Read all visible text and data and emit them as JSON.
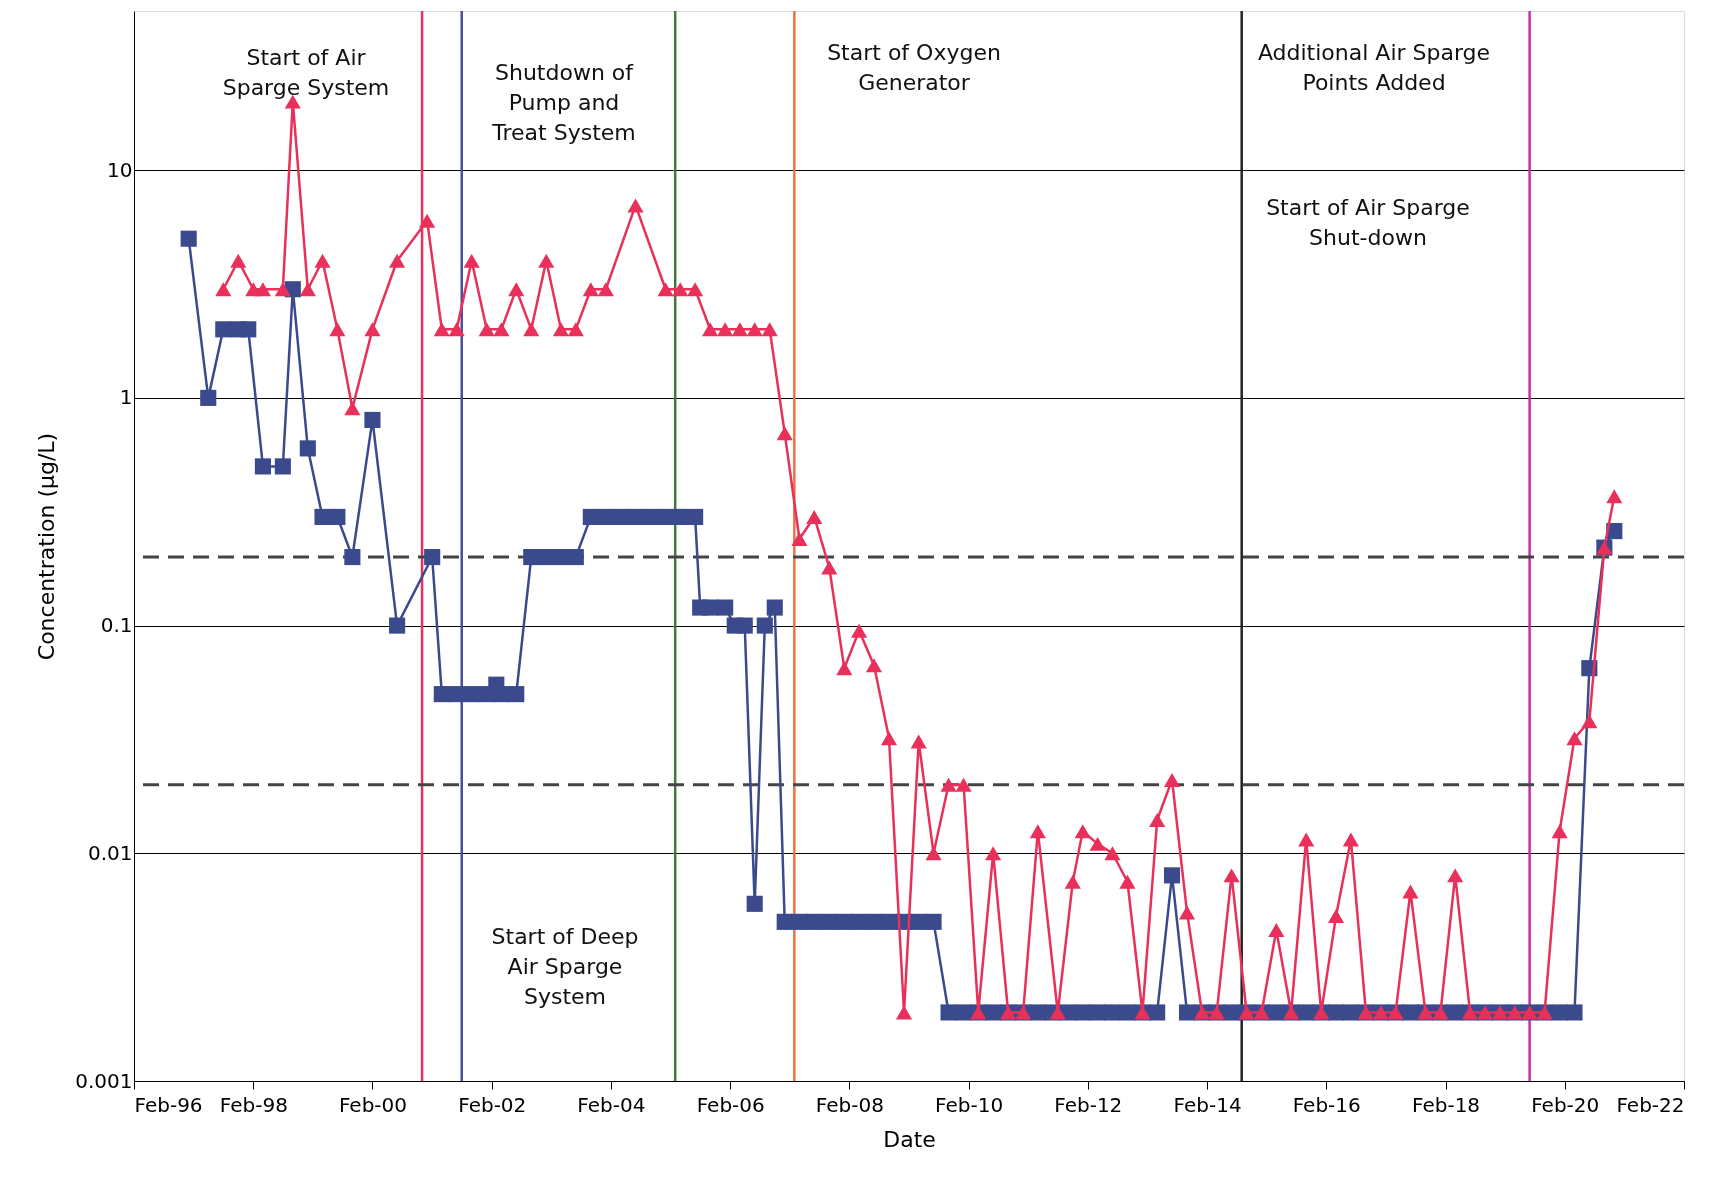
{
  "chart_data": {
    "type": "line",
    "xlabel": "Date",
    "ylabel": "Concentration (µg/L)",
    "log": "y",
    "grid": "y",
    "xlim": [
      "1996-02",
      "2022-02"
    ],
    "xticks": [
      {
        "value": "1996-02",
        "label": "Feb-96"
      },
      {
        "value": "1998-02",
        "label": "Feb-98"
      },
      {
        "value": "2000-02",
        "label": "Feb-00"
      },
      {
        "value": "2002-02",
        "label": "Feb-02"
      },
      {
        "value": "2004-02",
        "label": "Feb-04"
      },
      {
        "value": "2006-02",
        "label": "Feb-06"
      },
      {
        "value": "2008-02",
        "label": "Feb-08"
      },
      {
        "value": "2010-02",
        "label": "Feb-10"
      },
      {
        "value": "2012-02",
        "label": "Feb-12"
      },
      {
        "value": "2014-02",
        "label": "Feb-14"
      },
      {
        "value": "2016-02",
        "label": "Feb-16"
      },
      {
        "value": "2018-02",
        "label": "Feb-18"
      },
      {
        "value": "2020-02",
        "label": "Feb-20"
      },
      {
        "value": "2022-02",
        "label": "Feb-22"
      }
    ],
    "ylim": [
      0.001,
      50
    ],
    "yticks": [
      0.001,
      0.01,
      0.1,
      1,
      10
    ],
    "series": [
      {
        "type": "line",
        "color": "#3b4a8c",
        "marker": "square",
        "x": [
          "1997-01",
          "1997-05",
          "1997-08",
          "1997-11",
          "1998-01",
          "1998-04",
          "1998-08",
          "1998-10",
          "1999-01",
          "1999-04",
          "1999-07",
          "1999-10",
          "2000-02",
          "2000-07",
          "2001-02",
          "2001-04",
          "2001-07",
          "2001-10",
          "2002-01",
          "2002-03",
          "2002-04",
          "2002-07",
          "2002-10",
          "2003-01",
          "2003-04",
          "2003-07",
          "2003-10",
          "2004-01",
          "2004-04",
          "2004-07",
          "2004-10",
          "2005-01",
          "2005-04",
          "2005-07",
          "2005-08",
          "2005-10",
          "2006-01",
          "2006-03",
          "2006-05",
          "2006-07",
          "2006-09",
          "2006-11",
          "2007-01",
          "2007-04",
          "2007-07",
          "2007-10",
          "2008-01",
          "2008-04",
          "2008-07",
          "2008-10",
          "2009-01",
          "2009-04",
          "2009-07",
          "2009-10",
          "2010-01",
          "2010-04",
          "2010-07",
          "2010-10",
          "2011-01",
          "2011-04",
          "2011-07",
          "2011-10",
          "2012-01",
          "2012-04",
          "2012-07",
          "2012-10",
          "2013-01",
          "2013-04",
          "2013-07",
          "2013-10",
          "2014-01",
          "2014-04",
          "2014-07",
          "2014-10",
          "2015-01",
          "2015-04",
          "2015-07",
          "2015-10",
          "2016-01",
          "2016-04",
          "2016-07",
          "2016-10",
          "2017-01",
          "2017-04",
          "2017-07",
          "2017-10",
          "2018-01",
          "2018-04",
          "2018-07",
          "2018-10",
          "2019-01",
          "2019-04",
          "2019-07",
          "2019-10",
          "2020-01",
          "2020-04",
          "2020-07",
          "2020-10",
          "2020-12"
        ],
        "values": [
          5,
          1,
          2,
          2,
          2,
          0.5,
          0.5,
          3,
          0.6,
          0.3,
          0.3,
          0.2,
          0.8,
          0.1,
          0.2,
          0.05,
          0.05,
          0.05,
          0.05,
          0.055,
          0.05,
          0.05,
          0.2,
          0.2,
          0.2,
          0.2,
          0.3,
          0.3,
          0.3,
          0.3,
          0.3,
          0.3,
          0.3,
          0.3,
          0.12,
          0.12,
          0.12,
          0.1,
          0.1,
          0.006,
          0.1,
          0.12,
          0.005,
          0.005,
          0.005,
          0.005,
          0.005,
          0.005,
          0.005,
          0.005,
          0.005,
          0.005,
          0.005,
          0.002,
          0.002,
          0.002,
          0.002,
          0.002,
          0.002,
          0.002,
          0.002,
          0.002,
          0.002,
          0.002,
          0.002,
          0.002,
          0.002,
          0.002,
          0.008,
          0.002,
          0.002,
          0.002,
          0.002,
          0.002,
          0.002,
          0.002,
          0.002,
          0.002,
          0.002,
          0.002,
          0.002,
          0.002,
          0.002,
          0.002,
          0.002,
          0.002,
          0.002,
          0.002,
          0.002,
          0.002,
          0.002,
          0.002,
          0.002,
          0.002,
          0.002,
          0.002,
          0.065,
          0.22,
          0.26
        ]
      },
      {
        "type": "line",
        "color": "#e8305a",
        "marker": "triangle",
        "x": [
          "1997-08",
          "1997-11",
          "1998-02",
          "1998-04",
          "1998-08",
          "1998-10",
          "1999-01",
          "1999-04",
          "1999-07",
          "1999-10",
          "2000-02",
          "2000-07",
          "2001-01",
          "2001-04",
          "2001-07",
          "2001-10",
          "2002-01",
          "2002-04",
          "2002-07",
          "2002-10",
          "2003-01",
          "2003-04",
          "2003-07",
          "2003-10",
          "2004-01",
          "2004-07",
          "2005-01",
          "2005-04",
          "2005-07",
          "2005-10",
          "2006-01",
          "2006-04",
          "2006-07",
          "2006-10",
          "2007-01",
          "2007-04",
          "2007-07",
          "2007-10",
          "2008-01",
          "2008-04",
          "2008-07",
          "2008-10",
          "2009-01",
          "2009-04",
          "2009-07",
          "2009-10",
          "2010-01",
          "2010-04",
          "2010-07",
          "2010-10",
          "2011-01",
          "2011-04",
          "2011-08",
          "2011-11",
          "2012-01",
          "2012-04",
          "2012-07",
          "2012-10",
          "2013-01",
          "2013-04",
          "2013-07",
          "2013-10",
          "2014-01",
          "2014-04",
          "2014-07",
          "2014-10",
          "2015-01",
          "2015-04",
          "2015-07",
          "2015-10",
          "2016-01",
          "2016-04",
          "2016-07",
          "2016-10",
          "2017-01",
          "2017-04",
          "2017-07",
          "2017-10",
          "2018-01",
          "2018-04",
          "2018-07",
          "2018-10",
          "2019-01",
          "2019-04",
          "2019-07",
          "2019-10",
          "2020-01",
          "2020-04",
          "2020-07",
          "2020-10",
          "2020-12"
        ],
        "values": [
          3,
          4,
          3,
          3,
          3,
          20,
          3,
          4,
          2,
          0.9,
          2,
          4,
          6,
          2,
          2,
          4,
          2,
          2,
          3,
          2,
          4,
          2,
          2,
          3,
          3,
          7,
          3,
          3,
          3,
          2,
          2,
          2,
          2,
          2,
          0.7,
          0.24,
          0.3,
          0.18,
          0.065,
          0.095,
          0.067,
          0.032,
          0.002,
          0.031,
          0.01,
          0.02,
          0.02,
          0.002,
          0.01,
          0.002,
          0.002,
          0.0125,
          0.002,
          0.0075,
          0.0125,
          0.011,
          0.01,
          0.0075,
          0.002,
          0.014,
          0.021,
          0.0055,
          0.002,
          0.002,
          0.008,
          0.002,
          0.002,
          0.0046,
          0.002,
          0.0115,
          0.002,
          0.0053,
          0.0115,
          0.002,
          0.002,
          0.002,
          0.0068,
          0.002,
          0.002,
          0.008,
          0.002,
          0.002,
          0.002,
          0.002,
          0.002,
          0.002,
          0.0125,
          0.032,
          0.038,
          0.22,
          0.37
        ]
      }
    ],
    "ref_lines": [
      {
        "axis": "x",
        "value": "2000-12",
        "color": "#e8305a",
        "line_style": "solid"
      },
      {
        "axis": "x",
        "value": "2001-08",
        "color": "#4a4e9a",
        "line_style": "solid"
      },
      {
        "axis": "x",
        "value": "2005-03",
        "color": "#3f7a3a",
        "line_style": "solid"
      },
      {
        "axis": "x",
        "value": "2007-03",
        "color": "#f07040",
        "line_style": "solid"
      },
      {
        "axis": "x",
        "value": "2014-09",
        "color": "#222222",
        "line_style": "solid"
      },
      {
        "axis": "x",
        "value": "2019-07",
        "color": "#c030b0",
        "line_style": "solid"
      },
      {
        "axis": "y",
        "value": 0.2,
        "color": "#444444",
        "line_style": "dashed"
      },
      {
        "axis": "y",
        "value": 0.02,
        "color": "#444444",
        "line_style": "dashed"
      }
    ],
    "annotations": [
      "Start of Air\nSparge System",
      "Shutdown of\nPump and\nTreat System",
      "Start of Oxygen\nGenerator",
      "Additional Air Sparge\nPoints Added",
      "Start of Air Sparge\nShut-down",
      "Start of Deep\nAir Sparge\nSystem"
    ]
  }
}
